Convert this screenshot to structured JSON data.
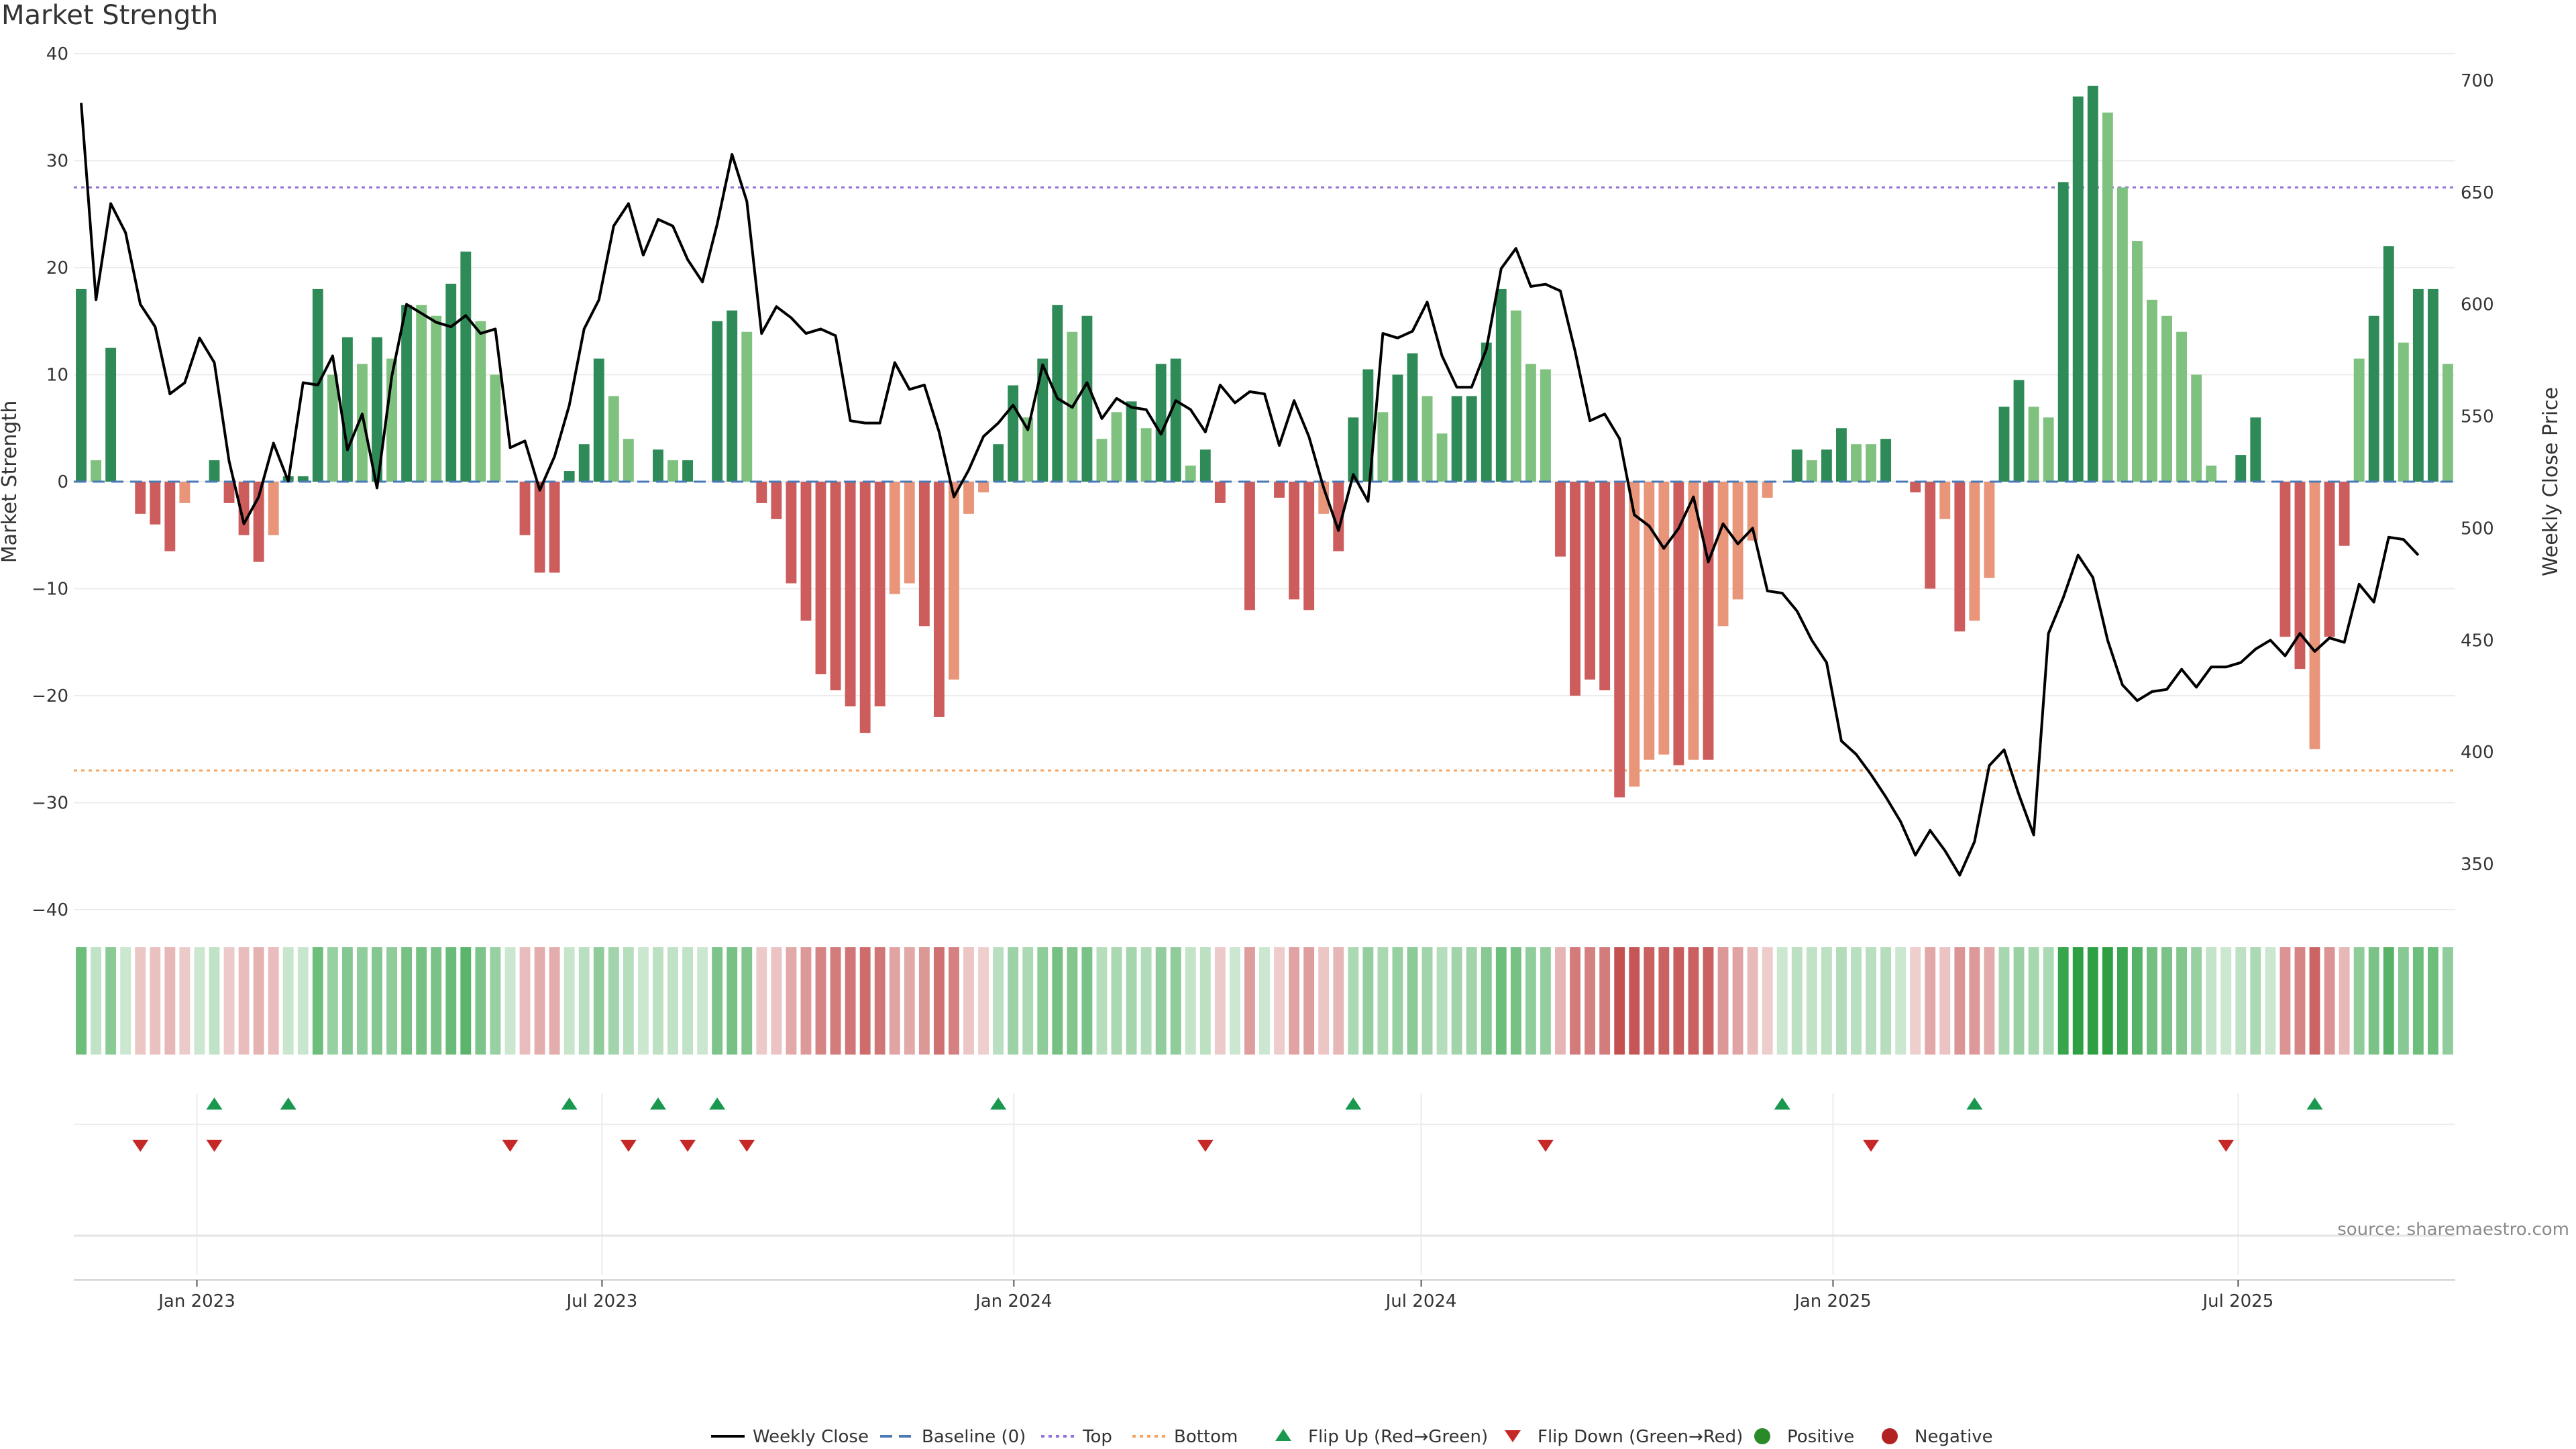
{
  "title": "Market Strength",
  "source": "source: sharemaestro.com",
  "colors": {
    "pos_strong": "#2e8b57",
    "pos_light": "#7fc17f",
    "neg_strong": "#cd5c5c",
    "neg_light": "#e8957a",
    "close_line": "#000000",
    "baseline": "#4a7ab5",
    "top": "#9370db",
    "bottom": "#f4a460",
    "flip_up": "#1a9850",
    "flip_down": "#c62828"
  },
  "chart_data": {
    "type": "bar",
    "title": "Market Strength",
    "ylabel": "Market Strength",
    "y2label": "Weekly Close Price",
    "ylim": [
      -40,
      40
    ],
    "y2lim": [
      320,
      710
    ],
    "yticks": [
      "40",
      "30",
      "20",
      "10",
      "0",
      "−10",
      "−20",
      "−30",
      "−40"
    ],
    "y2ticks": [
      "700",
      "650",
      "600",
      "550",
      "500",
      "450",
      "400",
      "350"
    ],
    "xticks": [
      "Jan 2023",
      "Jul 2023",
      "Jan 2024",
      "Jul 2024",
      "Jan 2025",
      "Jul 2025"
    ],
    "x_start": "2022-11-07",
    "x_end": "2025-10-06",
    "top_level": 27.5,
    "bottom_level": -27,
    "strength": [
      18,
      2,
      12.5,
      0,
      -3,
      -4,
      -6.5,
      -2,
      0,
      2,
      -2,
      -5,
      -7.5,
      -5,
      0.5,
      0.5,
      18,
      10,
      13.5,
      11,
      13.5,
      11.5,
      16.5,
      16.5,
      15.5,
      18.5,
      21.5,
      15,
      10,
      0,
      -5,
      -8.5,
      -8.5,
      1,
      3.5,
      11.5,
      8,
      4,
      0,
      3,
      2,
      2,
      0,
      15,
      16,
      14,
      -2,
      -3.5,
      -9.5,
      -13,
      -18,
      -19.5,
      -21,
      -23.5,
      -21,
      -10.5,
      -9.5,
      -13.5,
      -22,
      -18.5,
      -3,
      -1,
      3.5,
      9,
      6,
      11.5,
      16.5,
      14,
      15.5,
      4,
      6.5,
      7.5,
      5,
      11,
      11.5,
      1.5,
      3,
      -2,
      0,
      -12,
      0,
      -1.5,
      -11,
      -12,
      -3,
      -6.5,
      6,
      10.5,
      6.5,
      10,
      12,
      8,
      4.5,
      8,
      8,
      13,
      18,
      16,
      11,
      10.5,
      -7,
      -20,
      -18.5,
      -19.5,
      -29.5,
      -28.5,
      -26,
      -25.5,
      -26.5,
      -26,
      -26,
      -13.5,
      -11,
      -5.5,
      -1.5,
      0,
      3,
      2,
      3,
      5,
      3.5,
      3.5,
      4,
      0,
      -1,
      -10,
      -3.5,
      -14,
      -13,
      -9,
      7,
      9.5,
      7,
      6,
      28,
      36,
      37,
      34.5,
      27.5,
      22.5,
      17,
      15.5,
      14,
      10,
      1.5,
      0,
      2.5,
      6,
      0,
      -14.5,
      -17.5,
      -25,
      -14.5,
      -6,
      11.5,
      15.5,
      22,
      13,
      18,
      18,
      11
    ],
    "light": [
      false,
      true,
      false,
      false,
      false,
      false,
      false,
      true,
      false,
      false,
      false,
      false,
      false,
      true,
      false,
      false,
      false,
      true,
      false,
      true,
      false,
      true,
      false,
      true,
      true,
      false,
      false,
      true,
      true,
      false,
      false,
      false,
      false,
      false,
      false,
      false,
      true,
      true,
      false,
      false,
      true,
      false,
      false,
      false,
      false,
      true,
      false,
      false,
      false,
      false,
      false,
      false,
      false,
      false,
      false,
      true,
      true,
      false,
      false,
      true,
      true,
      true,
      false,
      false,
      true,
      false,
      false,
      true,
      false,
      true,
      true,
      false,
      true,
      false,
      false,
      true,
      false,
      false,
      false,
      false,
      false,
      false,
      false,
      false,
      true,
      false,
      false,
      false,
      true,
      false,
      false,
      true,
      true,
      false,
      false,
      false,
      false,
      true,
      true,
      true,
      false,
      false,
      false,
      false,
      false,
      true,
      true,
      true,
      false,
      true,
      false,
      true,
      true,
      true,
      true,
      false,
      false,
      true,
      false,
      false,
      true,
      true,
      false,
      false,
      false,
      false,
      true,
      false,
      true,
      true,
      false,
      false,
      true,
      true,
      false,
      false,
      false,
      true,
      true,
      true,
      true,
      true,
      true,
      true,
      true,
      false,
      false,
      false,
      false,
      false,
      false,
      true,
      false,
      false,
      true,
      false,
      false,
      true,
      false,
      false,
      true
    ],
    "close": [
      690,
      602,
      645,
      632,
      600,
      590,
      560,
      565,
      585,
      574,
      530,
      502,
      514,
      538,
      521,
      565,
      564,
      577,
      535,
      551,
      518,
      568,
      600,
      596,
      592,
      590,
      595,
      587,
      589,
      536,
      539,
      517,
      532,
      555,
      589,
      602,
      635,
      645,
      622,
      638,
      635,
      620,
      610,
      636,
      667,
      646,
      587,
      599,
      594,
      587,
      589,
      586,
      548,
      547,
      547,
      574,
      562,
      564,
      543,
      514,
      526,
      541,
      547,
      555,
      544,
      573,
      558,
      554,
      565,
      549,
      558,
      554,
      553,
      542,
      557,
      553,
      543,
      564,
      556,
      561,
      560,
      537,
      557,
      541,
      518,
      499,
      524,
      512,
      587,
      585,
      588,
      601,
      577,
      563,
      563,
      580,
      616,
      625,
      608,
      609,
      606,
      579,
      548,
      551,
      540,
      506,
      501,
      491,
      500,
      514,
      485,
      502,
      493,
      500,
      472,
      471,
      463,
      450,
      440,
      405,
      399,
      390,
      380,
      369,
      354,
      365,
      356,
      345,
      360,
      394,
      401,
      381,
      363,
      453,
      469,
      488,
      478,
      450,
      430,
      423,
      427,
      428,
      437,
      429,
      438,
      438,
      440,
      446,
      450,
      443,
      453,
      445,
      451,
      449,
      475,
      467,
      496,
      495,
      488
    ],
    "flip_up": [
      9,
      14,
      33,
      39,
      43,
      62,
      86,
      115,
      128,
      151
    ],
    "flip_down": [
      4,
      9,
      29,
      37,
      41,
      45,
      76,
      99,
      121,
      145
    ]
  },
  "legend": {
    "weekly_close": "Weekly Close",
    "baseline": "Baseline (0)",
    "top": "Top",
    "bottom": "Bottom",
    "flip_up": "Flip Up (Red→Green)",
    "flip_down": "Flip Down (Green→Red)",
    "positive": "Positive",
    "negative": "Negative"
  }
}
